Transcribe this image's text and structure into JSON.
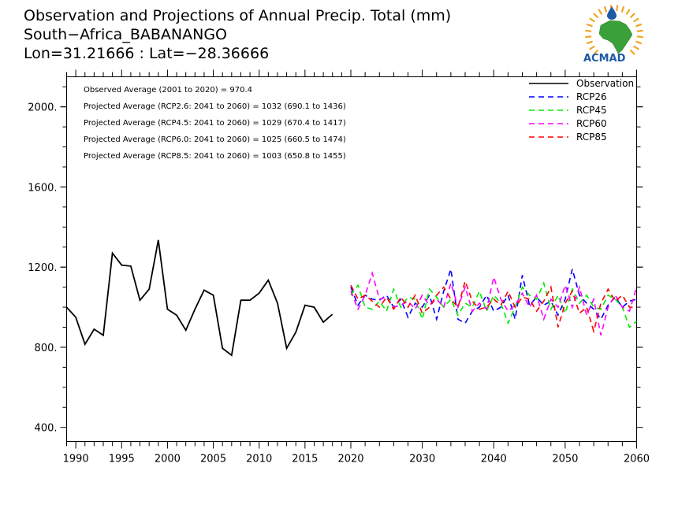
{
  "header": {
    "title_line1": "Observation and Projections of Annual Precip. Total (mm)",
    "title_line2": "South−Africa_BABANANGO",
    "title_line3": "Lon=31.21666 : Lat=−28.36666"
  },
  "logo": {
    "text": "ACMAD",
    "colors": {
      "continent": "#3aa13a",
      "drop": "#1f5aa6",
      "rays": "#f0a623",
      "text": "#1f5aa6"
    }
  },
  "annotations": [
    "Observed Average (2001 to 2020) = 970.4",
    "Projected Average (RCP2.6: 2041 to 2060) = 1032 (690.1 to 1436)",
    "Projected Average (RCP4.5: 2041 to 2060) = 1029 (670.4 to 1417)",
    "Projected Average (RCP6.0: 2041 to 2060) = 1025 (660.5 to 1474)",
    "Projected Average (RCP8.5: 2041 to 2060) = 1003 (650.8 to 1455)"
  ],
  "chart_data": {
    "type": "line",
    "title": "Observation and Projections of Annual Precip. Total (mm)",
    "xlabel": "",
    "ylabel": "",
    "ylim": [
      330,
      2150
    ],
    "y_ticks": [
      400,
      800,
      1200,
      1600,
      2000
    ],
    "y_tick_labels": [
      "400.",
      "800.",
      "1200.",
      "1600.",
      "2000."
    ],
    "x_segments": [
      {
        "start": 1989,
        "end": 2020
      },
      {
        "start": 2020,
        "end": 2060
      }
    ],
    "x_tick_labels_left": [
      "1990",
      "1995",
      "2000",
      "2005",
      "2010",
      "2015",
      "2020"
    ],
    "x_tick_labels_right": [
      "2030",
      "2040",
      "2050",
      "2060"
    ],
    "legend_position": "top-right",
    "grid": false,
    "series": [
      {
        "name": "Observation",
        "color": "#000000",
        "dash": "solid",
        "x": [
          1989,
          1990,
          1991,
          1992,
          1993,
          1994,
          1995,
          1996,
          1997,
          1998,
          1999,
          2000,
          2001,
          2002,
          2003,
          2004,
          2005,
          2006,
          2007,
          2008,
          2009,
          2010,
          2011,
          2012,
          2013,
          2014,
          2015,
          2016,
          2017,
          2018,
          2019
        ],
        "values": [
          1000,
          950,
          815,
          890,
          860,
          1270,
          1210,
          1205,
          1035,
          1090,
          1335,
          990,
          960,
          885,
          990,
          1085,
          1060,
          795,
          760,
          1035,
          1035,
          1070,
          1135,
          1020,
          795,
          875,
          1010,
          1000,
          925,
          965,
          null
        ]
      },
      {
        "name": "RCP26",
        "color": "#0000ff",
        "dash": "dashed",
        "x": [
          2020,
          2021,
          2022,
          2023,
          2024,
          2025,
          2026,
          2027,
          2028,
          2029,
          2030,
          2031,
          2032,
          2033,
          2034,
          2035,
          2036,
          2037,
          2038,
          2039,
          2040,
          2041,
          2042,
          2043,
          2044,
          2045,
          2046,
          2047,
          2048,
          2049,
          2050,
          2051,
          2052,
          2053,
          2054,
          2055,
          2056,
          2057,
          2058,
          2059,
          2060
        ],
        "values": [
          1100,
          1010,
          1060,
          1040,
          1035,
          1060,
          1000,
          1040,
          950,
          1020,
          1000,
          1060,
          940,
          1080,
          1190,
          940,
          920,
          980,
          1000,
          1060,
          980,
          1000,
          1060,
          940,
          1160,
          1010,
          1050,
          1010,
          1030,
          960,
          1040,
          1190,
          1060,
          1020,
          990,
          940,
          1010,
          1050,
          1000,
          1030,
          1040
        ]
      },
      {
        "name": "RCP45",
        "color": "#00ee00",
        "dash": "dashed",
        "x": [
          2020,
          2021,
          2022,
          2023,
          2024,
          2025,
          2026,
          2027,
          2028,
          2029,
          2030,
          2031,
          2032,
          2033,
          2034,
          2035,
          2036,
          2037,
          2038,
          2039,
          2040,
          2041,
          2042,
          2043,
          2044,
          2045,
          2046,
          2047,
          2048,
          2049,
          2050,
          2051,
          2052,
          2053,
          2054,
          2055,
          2056,
          2057,
          2058,
          2059,
          2060
        ],
        "values": [
          1060,
          1110,
          1000,
          990,
          1030,
          980,
          1090,
          1000,
          1050,
          1040,
          940,
          1090,
          1050,
          1000,
          1040,
          960,
          1020,
          1000,
          1080,
          980,
          1060,
          1020,
          920,
          1000,
          1100,
          1060,
          1040,
          1120,
          990,
          1060,
          970,
          1090,
          1020,
          1060,
          1000,
          990,
          1060,
          1040,
          1000,
          900,
          930
        ]
      },
      {
        "name": "RCP60",
        "color": "#ff00ff",
        "dash": "dashed",
        "x": [
          2020,
          2021,
          2022,
          2023,
          2024,
          2025,
          2026,
          2027,
          2028,
          2029,
          2030,
          2031,
          2032,
          2033,
          2034,
          2035,
          2036,
          2037,
          2038,
          2039,
          2040,
          2041,
          2042,
          2043,
          2044,
          2045,
          2046,
          2047,
          2048,
          2049,
          2050,
          2051,
          2052,
          2053,
          2054,
          2055,
          2056,
          2057,
          2058,
          2059,
          2060
        ],
        "values": [
          1080,
          990,
          1060,
          1170,
          1040,
          1050,
          1000,
          1010,
          1030,
          990,
          1060,
          1010,
          1040,
          1000,
          1120,
          1000,
          1100,
          980,
          1020,
          990,
          1150,
          1040,
          980,
          1010,
          1070,
          1000,
          1060,
          940,
          1040,
          1000,
          1110,
          1000,
          1100,
          960,
          1040,
          860,
          1000,
          1060,
          1000,
          980,
          1100
        ]
      },
      {
        "name": "RCP85",
        "color": "#ff0000",
        "dash": "dashed",
        "x": [
          2020,
          2021,
          2022,
          2023,
          2024,
          2025,
          2026,
          2027,
          2028,
          2029,
          2030,
          2031,
          2032,
          2033,
          2034,
          2035,
          2036,
          2037,
          2038,
          2039,
          2040,
          2041,
          2042,
          2043,
          2044,
          2045,
          2046,
          2047,
          2048,
          2049,
          2050,
          2051,
          2052,
          2053,
          2054,
          2055,
          2056,
          2057,
          2058,
          2059,
          2060
        ],
        "values": [
          1110,
          1040,
          1060,
          1030,
          1000,
          1050,
          990,
          1050,
          1000,
          1060,
          970,
          1000,
          1060,
          1100,
          1040,
          1000,
          1130,
          1030,
          990,
          1000,
          1040,
          1010,
          1080,
          1000,
          1050,
          1040,
          980,
          1030,
          1100,
          900,
          1020,
          1080,
          970,
          1000,
          880,
          1020,
          1090,
          1030,
          1060,
          1000,
          1000
        ]
      }
    ]
  }
}
